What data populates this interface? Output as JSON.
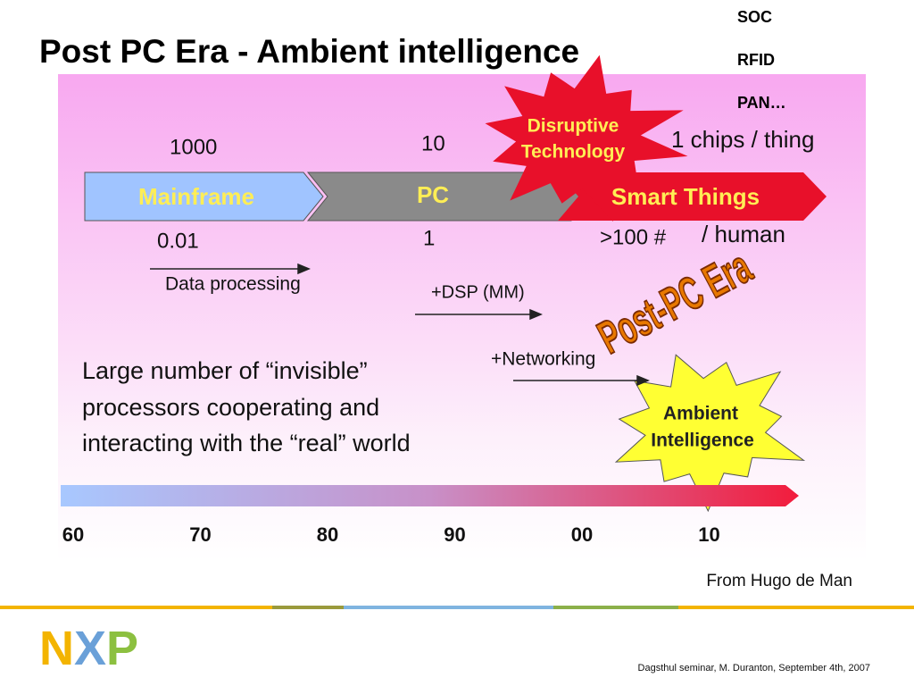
{
  "title": "Post PC Era - Ambient intelligence",
  "side_list": [
    "SOC",
    "RFID",
    "PAN…"
  ],
  "disruptive": [
    "Disruptive",
    "Technology"
  ],
  "top_numbers": [
    "1000",
    "10",
    "1 chips / thing"
  ],
  "eras": [
    "Mainframe",
    "PC",
    "Smart Things"
  ],
  "bottom_numbers": [
    "0.01",
    "1",
    ">100 #",
    "/ human"
  ],
  "steps": [
    "Data processing",
    "+DSP (MM)",
    "+Networking"
  ],
  "post_pc": "Post-PC Era",
  "body": [
    "Large number of “invisible”",
    "processors cooperating and",
    "interacting with the “real” world"
  ],
  "ambient": [
    "Ambient",
    "Intelligence"
  ],
  "timeline": [
    "60",
    "70",
    "80",
    "90",
    "00",
    "10"
  ],
  "source": "From Hugo de Man",
  "logo": [
    "N",
    "X",
    "P"
  ],
  "footer": "Dagsthul seminar, M. Duranton, September 4th, 2007"
}
